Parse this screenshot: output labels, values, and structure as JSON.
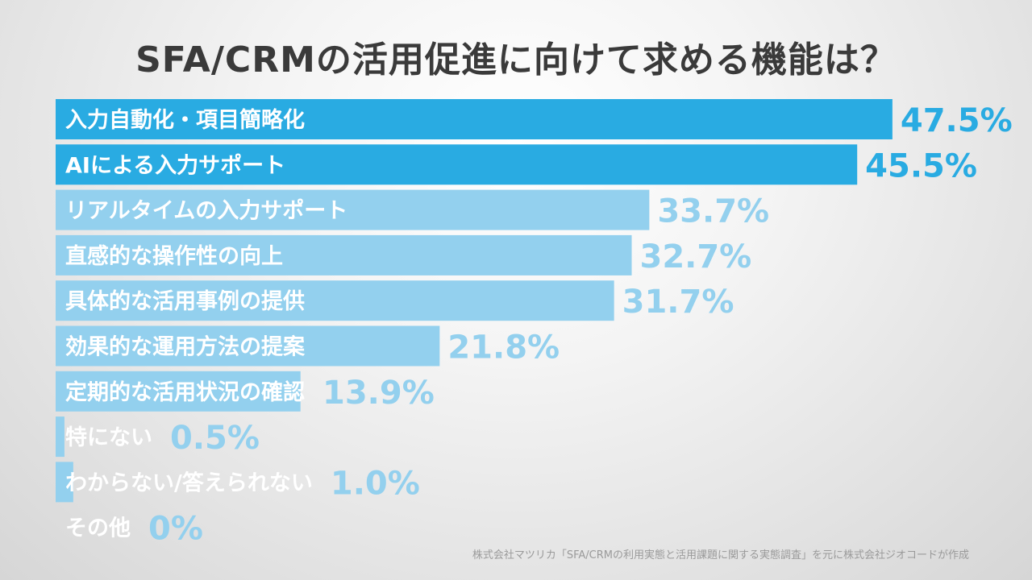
{
  "chart_data": {
    "type": "bar",
    "orientation": "horizontal",
    "title": "SFA/CRMの活用促進に向けて求める機能は？",
    "xlabel": "",
    "ylabel": "",
    "xlim": [
      0,
      50
    ],
    "grid": false,
    "categories": [
      "入力自動化・項目簡略化",
      "AIによる入力サポート",
      "リアルタイムの入力サポート",
      "直感的な操作性の向上",
      "具体的な活用事例の提供",
      "効果的な運用方法の提案",
      "定期的な活用状況の確認",
      "特にない",
      "わからない/答えられない",
      "その他"
    ],
    "values": [
      47.5,
      45.5,
      33.7,
      32.7,
      31.7,
      21.8,
      13.9,
      0.5,
      1.0,
      0
    ],
    "value_labels": [
      "47.5%",
      "45.5%",
      "33.7%",
      "32.7%",
      "31.7%",
      "21.8%",
      "13.9%",
      "0.5%",
      "1.0%",
      "0%"
    ],
    "highlight_count": 2,
    "colors": {
      "highlight": "#29abe2",
      "normal": "#93d0ee",
      "highlight_text": "#29abe2",
      "normal_text": "#93d0ee"
    },
    "source": "株式会社マツリカ「SFA/CRMの利用実態と活用課題に関する実態調査」を元に株式会社ジオコードが作成"
  }
}
